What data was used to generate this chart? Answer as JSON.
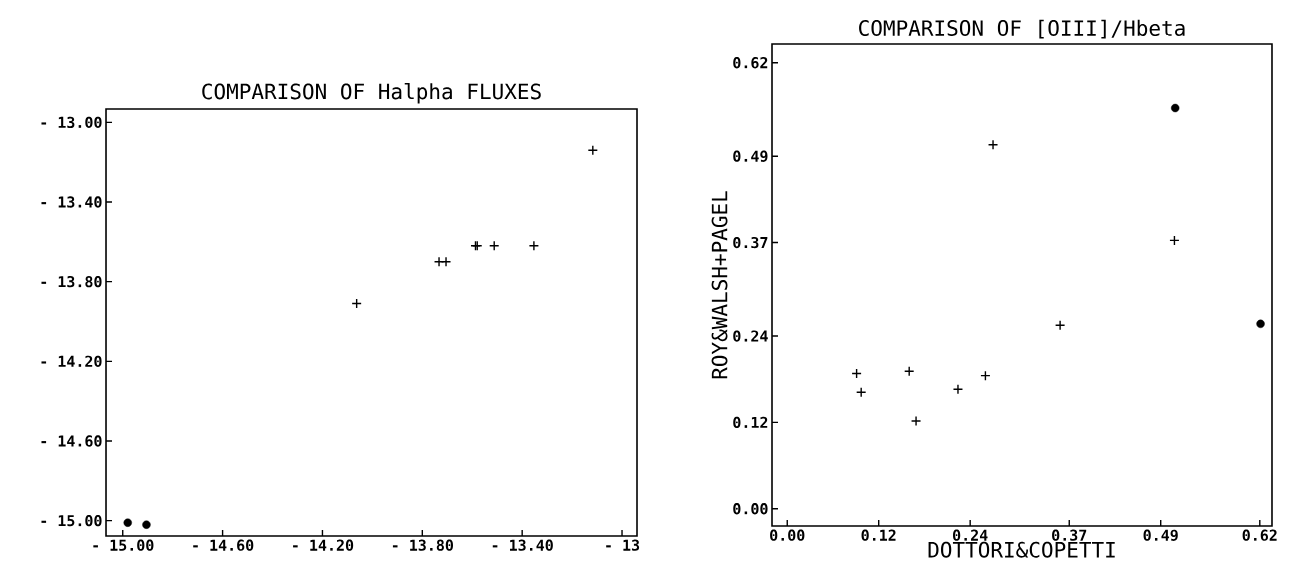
{
  "chart_data": [
    {
      "type": "scatter",
      "title": "COMPARISON OF Halpha FLUXES",
      "xlim": [
        -15.067,
        -12.94
      ],
      "ylim": [
        -15.077,
        -12.933
      ],
      "xticks": [
        {
          "value": -15.0,
          "label": "- 15.00"
        },
        {
          "value": -14.6,
          "label": "- 14.60"
        },
        {
          "value": -14.2,
          "label": "- 14.20"
        },
        {
          "value": -13.8,
          "label": "- 13.80"
        },
        {
          "value": -13.4,
          "label": "- 13.40"
        },
        {
          "value": -13.0,
          "label": "- 13"
        }
      ],
      "yticks": [
        {
          "value": -13.0,
          "label": "- 13.00"
        },
        {
          "value": -13.4,
          "label": "- 13.40"
        },
        {
          "value": -13.8,
          "label": "- 13.80"
        },
        {
          "value": -14.2,
          "label": "- 14.20"
        },
        {
          "value": -14.6,
          "label": "- 14.60"
        },
        {
          "value": -15.0,
          "label": "- 15.00"
        }
      ],
      "series": [
        {
          "color": "#000000",
          "marker": "cross",
          "x": [
            -14.063,
            -13.733,
            -13.705,
            -13.587,
            -13.58,
            -13.512,
            -13.353,
            -13.117
          ],
          "values": [
            -13.91,
            -13.7,
            -13.7,
            -13.62,
            -13.62,
            -13.62,
            -13.62,
            -13.14
          ]
        },
        {
          "color": "#000000",
          "marker": "circle",
          "x": [
            -14.98,
            -14.905
          ],
          "values": [
            -15.01,
            -15.02
          ]
        }
      ]
    },
    {
      "type": "scatter",
      "title": "COMPARISON OF [OIII]/Hbeta",
      "xlabel": "DOTTORI&COPETTI",
      "ylabel": "ROY&WALSH+PAGEL",
      "xlim": [
        -0.02,
        0.636
      ],
      "ylim": [
        -0.024,
        0.646
      ],
      "xticks": [
        {
          "value": 0,
          "label": "0.00"
        },
        0.12,
        0.24,
        0.37,
        0.49,
        0.62
      ],
      "yticks": [
        {
          "value": 0,
          "label": "0.00"
        },
        0.12,
        0.24,
        0.37,
        0.49,
        0.62
      ],
      "series": [
        {
          "color": "#000000",
          "marker": "cross",
          "x": [
            0.091,
            0.097,
            0.16,
            0.169,
            0.224,
            0.26,
            0.27,
            0.358,
            0.508
          ],
          "values": [
            0.188,
            0.162,
            0.191,
            0.122,
            0.166,
            0.185,
            0.506,
            0.255,
            0.373
          ]
        },
        {
          "color": "#000000",
          "marker": "circle",
          "x": [
            0.509,
            0.621
          ],
          "values": [
            0.557,
            0.257
          ]
        }
      ]
    }
  ]
}
